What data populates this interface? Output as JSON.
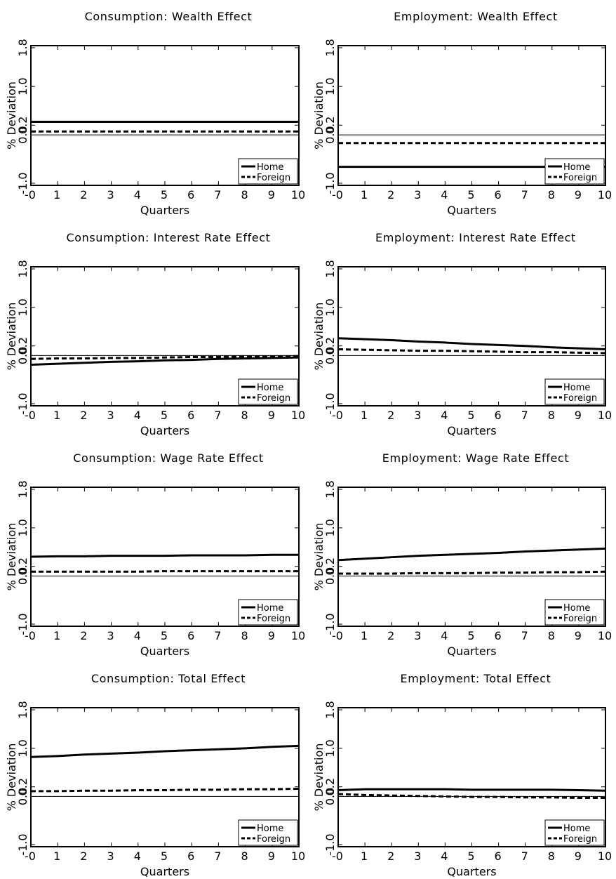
{
  "figure": {
    "xlabel": "Quarters",
    "ylabel": "% Deviation",
    "xticks": [
      "-0",
      "1",
      "2",
      "3",
      "4",
      "5",
      "6",
      "7",
      "8",
      "9",
      "10"
    ],
    "yticks": [
      "-1.0",
      "0.2",
      "1.0",
      "1.8"
    ],
    "ytick_values": [
      -1.0,
      0.2,
      1.0,
      1.8
    ],
    "zero_label": "0.0",
    "colors": {
      "line": "#000000",
      "background": "#ffffff"
    }
  },
  "chart_data": [
    {
      "type": "line",
      "title": "Consumption: Wealth Effect",
      "xlabel": "Quarters",
      "ylabel": "% Deviation",
      "xlim": [
        0,
        10
      ],
      "ylim": [
        -1.0,
        1.8
      ],
      "grid": false,
      "legend": "bottom-right",
      "x": [
        0,
        1,
        2,
        3,
        4,
        5,
        6,
        7,
        8,
        9,
        10
      ],
      "series": [
        {
          "name": "Home",
          "style": "solid",
          "values": [
            0.27,
            0.27,
            0.27,
            0.27,
            0.27,
            0.27,
            0.27,
            0.27,
            0.27,
            0.27,
            0.27
          ]
        },
        {
          "name": "Foreign",
          "style": "dashed",
          "values": [
            0.07,
            0.07,
            0.07,
            0.07,
            0.07,
            0.07,
            0.07,
            0.07,
            0.07,
            0.07,
            0.07
          ]
        }
      ]
    },
    {
      "type": "line",
      "title": "Employment: Wealth Effect",
      "xlabel": "Quarters",
      "ylabel": "% Deviation",
      "xlim": [
        0,
        10
      ],
      "ylim": [
        -1.0,
        1.8
      ],
      "grid": false,
      "legend": "bottom-right",
      "x": [
        0,
        1,
        2,
        3,
        4,
        5,
        6,
        7,
        8,
        9,
        10
      ],
      "series": [
        {
          "name": "Home",
          "style": "solid",
          "values": [
            -0.66,
            -0.66,
            -0.66,
            -0.66,
            -0.66,
            -0.66,
            -0.66,
            -0.66,
            -0.66,
            -0.66,
            -0.66
          ]
        },
        {
          "name": "Foreign",
          "style": "dashed",
          "values": [
            -0.17,
            -0.17,
            -0.17,
            -0.17,
            -0.17,
            -0.17,
            -0.17,
            -0.17,
            -0.17,
            -0.17,
            -0.17
          ]
        }
      ]
    },
    {
      "type": "line",
      "title": "Consumption: Interest Rate Effect",
      "xlabel": "Quarters",
      "ylabel": "% Deviation",
      "xlim": [
        0,
        10
      ],
      "ylim": [
        -1.0,
        1.8
      ],
      "grid": false,
      "legend": "bottom-right",
      "x": [
        0,
        1,
        2,
        3,
        4,
        5,
        6,
        7,
        8,
        9,
        10
      ],
      "series": [
        {
          "name": "Home",
          "style": "solid",
          "values": [
            -0.19,
            -0.17,
            -0.15,
            -0.13,
            -0.12,
            -0.1,
            -0.09,
            -0.07,
            -0.06,
            -0.05,
            -0.04
          ]
        },
        {
          "name": "Foreign",
          "style": "dashed",
          "values": [
            -0.07,
            -0.06,
            -0.06,
            -0.05,
            -0.05,
            -0.04,
            -0.03,
            -0.03,
            -0.02,
            -0.02,
            -0.01
          ]
        }
      ]
    },
    {
      "type": "line",
      "title": "Employment: Interest Rate Effect",
      "xlabel": "Quarters",
      "ylabel": "% Deviation",
      "xlim": [
        0,
        10
      ],
      "ylim": [
        -1.0,
        1.8
      ],
      "grid": false,
      "legend": "bottom-right",
      "x": [
        0,
        1,
        2,
        3,
        4,
        5,
        6,
        7,
        8,
        9,
        10
      ],
      "series": [
        {
          "name": "Home",
          "style": "solid",
          "values": [
            0.36,
            0.34,
            0.32,
            0.29,
            0.27,
            0.24,
            0.22,
            0.2,
            0.17,
            0.15,
            0.13
          ]
        },
        {
          "name": "Foreign",
          "style": "dashed",
          "values": [
            0.13,
            0.12,
            0.11,
            0.1,
            0.1,
            0.09,
            0.08,
            0.07,
            0.07,
            0.06,
            0.05
          ]
        }
      ]
    },
    {
      "type": "line",
      "title": "Consumption: Wage Rate Effect",
      "xlabel": "Quarters",
      "ylabel": "% Deviation",
      "xlim": [
        0,
        10
      ],
      "ylim": [
        -1.0,
        1.8
      ],
      "grid": false,
      "legend": "bottom-right",
      "x": [
        0,
        1,
        2,
        3,
        4,
        5,
        6,
        7,
        8,
        9,
        10
      ],
      "series": [
        {
          "name": "Home",
          "style": "solid",
          "values": [
            0.4,
            0.41,
            0.41,
            0.42,
            0.42,
            0.42,
            0.43,
            0.43,
            0.43,
            0.44,
            0.44
          ]
        },
        {
          "name": "Foreign",
          "style": "dashed",
          "values": [
            0.09,
            0.09,
            0.09,
            0.09,
            0.09,
            0.1,
            0.1,
            0.1,
            0.1,
            0.1,
            0.1
          ]
        }
      ]
    },
    {
      "type": "line",
      "title": "Employment: Wage Rate Effect",
      "xlabel": "Quarters",
      "ylabel": "% Deviation",
      "xlim": [
        0,
        10
      ],
      "ylim": [
        -1.0,
        1.8
      ],
      "grid": false,
      "legend": "bottom-right",
      "x": [
        0,
        1,
        2,
        3,
        4,
        5,
        6,
        7,
        8,
        9,
        10
      ],
      "series": [
        {
          "name": "Home",
          "style": "solid",
          "values": [
            0.33,
            0.36,
            0.39,
            0.42,
            0.44,
            0.46,
            0.48,
            0.51,
            0.53,
            0.55,
            0.57
          ]
        },
        {
          "name": "Foreign",
          "style": "dashed",
          "values": [
            0.05,
            0.05,
            0.05,
            0.06,
            0.06,
            0.06,
            0.07,
            0.07,
            0.08,
            0.08,
            0.09
          ]
        }
      ]
    },
    {
      "type": "line",
      "title": "Consumption: Total Effect",
      "xlabel": "Quarters",
      "ylabel": "% Deviation",
      "xlim": [
        0,
        10
      ],
      "ylim": [
        -1.0,
        1.8
      ],
      "grid": false,
      "legend": "bottom-right",
      "x": [
        0,
        1,
        2,
        3,
        4,
        5,
        6,
        7,
        8,
        9,
        10
      ],
      "series": [
        {
          "name": "Home",
          "style": "solid",
          "values": [
            0.82,
            0.84,
            0.87,
            0.89,
            0.91,
            0.94,
            0.96,
            0.98,
            1.0,
            1.03,
            1.05
          ]
        },
        {
          "name": "Foreign",
          "style": "dashed",
          "values": [
            0.11,
            0.11,
            0.12,
            0.12,
            0.13,
            0.13,
            0.14,
            0.14,
            0.15,
            0.15,
            0.16
          ]
        }
      ]
    },
    {
      "type": "line",
      "title": "Employment: Total Effect",
      "xlabel": "Quarters",
      "ylabel": "% Deviation",
      "xlim": [
        0,
        10
      ],
      "ylim": [
        -1.0,
        1.8
      ],
      "grid": false,
      "legend": "bottom-right",
      "x": [
        0,
        1,
        2,
        3,
        4,
        5,
        6,
        7,
        8,
        9,
        10
      ],
      "series": [
        {
          "name": "Home",
          "style": "solid",
          "values": [
            0.13,
            0.15,
            0.15,
            0.15,
            0.15,
            0.14,
            0.14,
            0.14,
            0.14,
            0.13,
            0.12
          ]
        },
        {
          "name": "Foreign",
          "style": "dashed",
          "values": [
            0.05,
            0.03,
            0.02,
            0.01,
            0.0,
            -0.01,
            -0.01,
            -0.02,
            -0.02,
            -0.03,
            -0.03
          ]
        }
      ]
    }
  ]
}
